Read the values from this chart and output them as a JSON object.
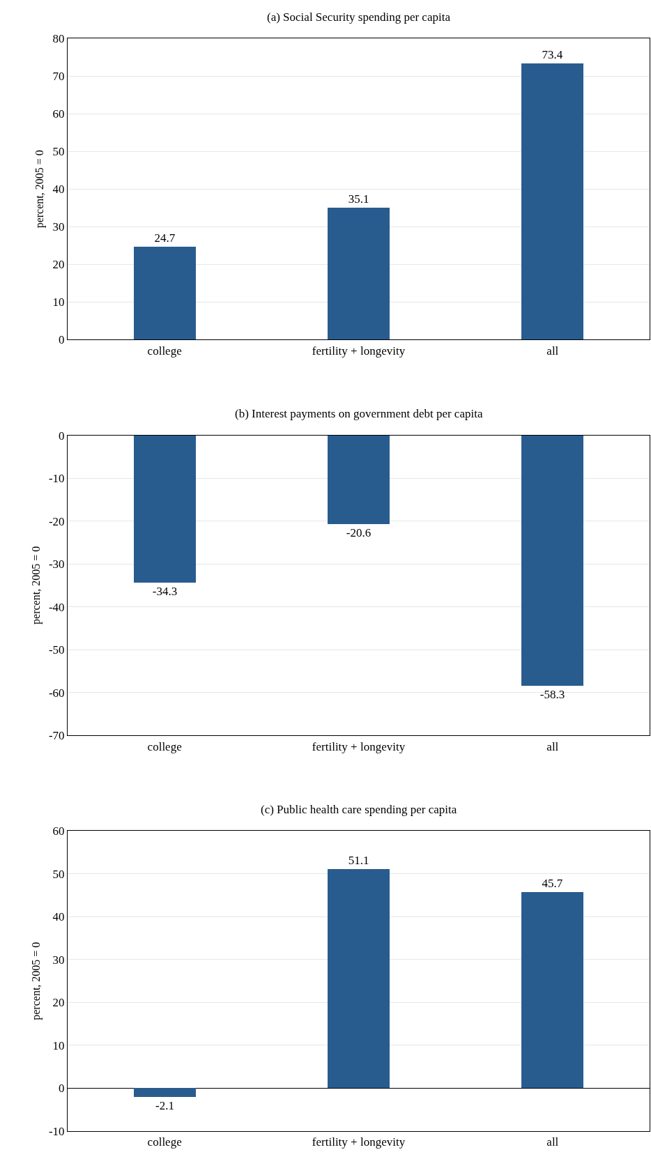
{
  "chart_data": [
    {
      "type": "bar",
      "title": "(a) Social Security spending per capita",
      "ylabel": "percent, 2005 = 0",
      "categories": [
        "college",
        "fertility + longevity",
        "all"
      ],
      "values": [
        24.7,
        35.1,
        73.4
      ],
      "color": "#285c8f",
      "ylim": [
        0,
        80
      ],
      "yticks": [
        0,
        10,
        20,
        30,
        40,
        50,
        60,
        70,
        80
      ],
      "grid": "y",
      "data_labels": true
    },
    {
      "type": "bar",
      "title": "(b) Interest payments on government debt per capita",
      "ylabel": "percent, 2005 = 0",
      "categories": [
        "college",
        "fertility + longevity",
        "all"
      ],
      "values": [
        -34.3,
        -20.6,
        -58.3
      ],
      "color": "#285c8f",
      "ylim": [
        -70,
        0
      ],
      "yticks": [
        -70,
        -60,
        -50,
        -40,
        -30,
        -20,
        -10,
        0
      ],
      "grid": "y",
      "data_labels": true
    },
    {
      "type": "bar",
      "title": "(c) Public health care spending per capita",
      "ylabel": "percent, 2005 = 0",
      "categories": [
        "college",
        "fertility + longevity",
        "all"
      ],
      "values": [
        -2.1,
        51.1,
        45.7
      ],
      "color": "#285c8f",
      "ylim": [
        -10,
        60
      ],
      "yticks": [
        -10,
        0,
        10,
        20,
        30,
        40,
        50,
        60
      ],
      "grid": "y",
      "data_labels": true
    }
  ]
}
